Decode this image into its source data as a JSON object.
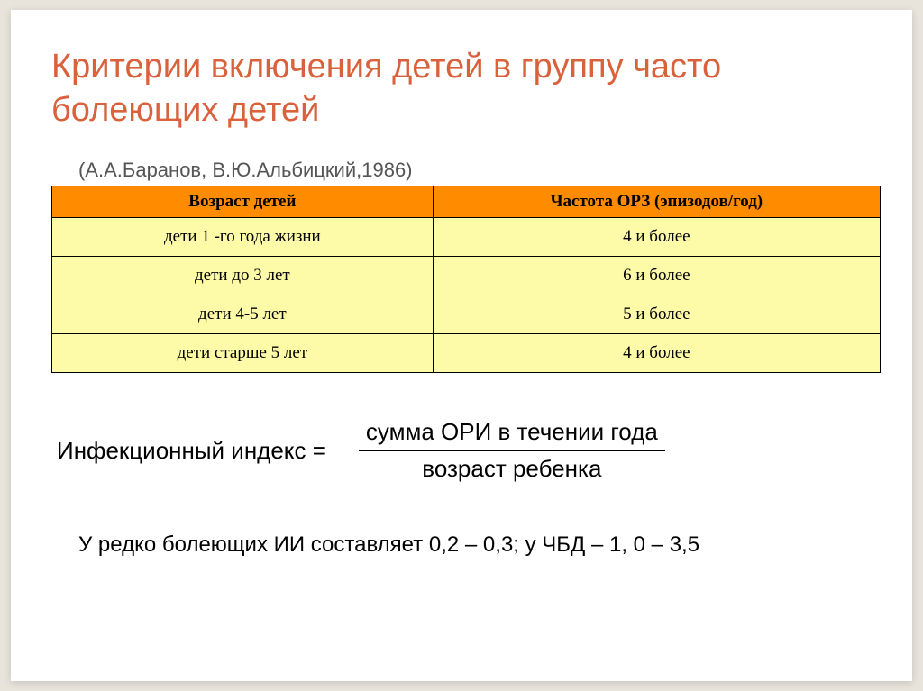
{
  "slide": {
    "title": "Критерии включения детей в группу часто болеющих детей",
    "citation": "(А.А.Баранов, В.Ю.Альбицкий,1986)",
    "formula": {
      "label": "Инфекционный индекс =",
      "numerator": "сумма ОРИ в течении года",
      "denominator": "возраст ребенка"
    },
    "note": "У редко болеющих ИИ составляет 0,2 – 0,3; у ЧБД – 1, 0 – 3,5"
  },
  "table": {
    "type": "table",
    "header_bg_color": "#ff8c00",
    "row_bg_color": "#fdfaa8",
    "border_color": "#000000",
    "columns": [
      "Возраст детей",
      "Частота ОРЗ (эпизодов/год)"
    ],
    "rows": [
      [
        "дети 1 -го года жизни",
        "4 и более"
      ],
      [
        "дети до 3 лет",
        "6 и более"
      ],
      [
        "дети 4-5 лет",
        "5 и более"
      ],
      [
        "дети старше 5 лет",
        "4 и более"
      ]
    ]
  },
  "colors": {
    "title_color": "#d9623d",
    "page_bg": "#e8e4dc",
    "slide_bg": "#ffffff"
  }
}
